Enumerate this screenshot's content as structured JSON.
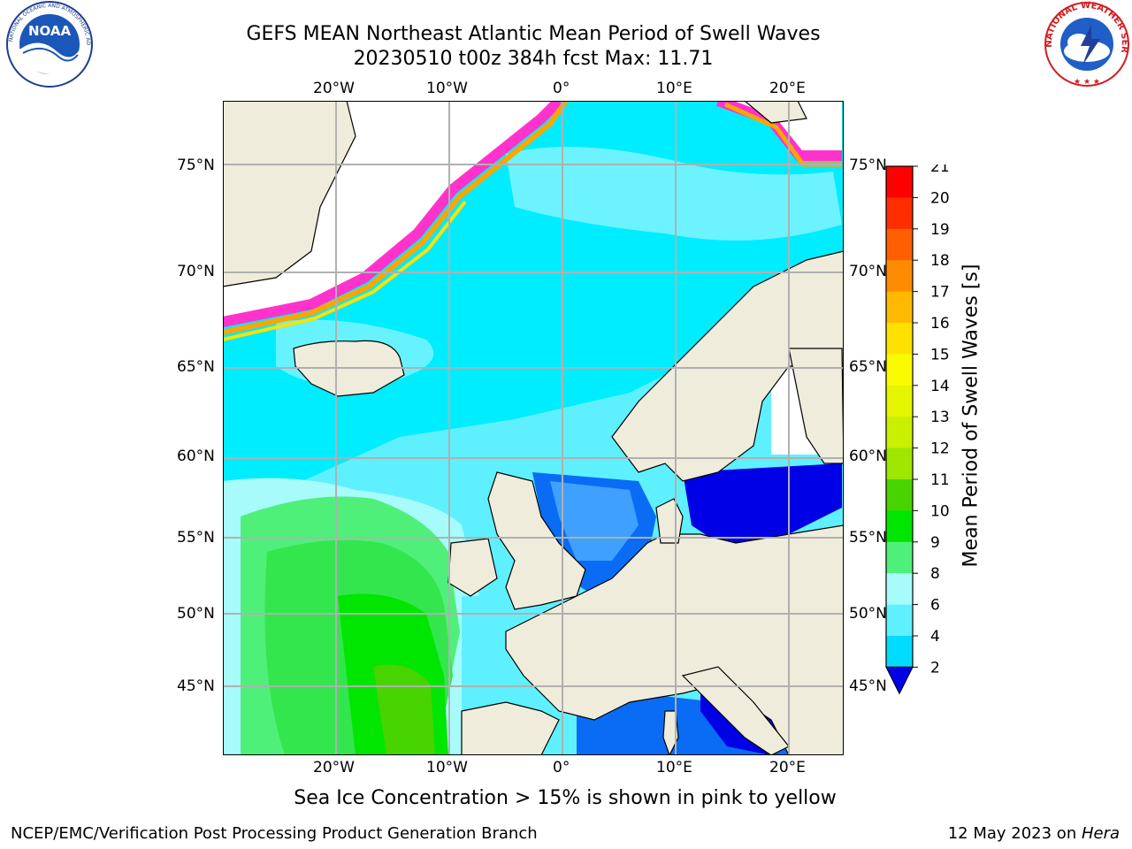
{
  "title": {
    "line1": "GEFS MEAN Northeast Atlantic Mean Period of Swell Waves",
    "line2": "20230510 t00z 384h fcst   Max: 11.71"
  },
  "caption": "Sea Ice Concentration > 15% is shown in pink to yellow",
  "footer": {
    "left": "NCEP/EMC/Verification Post Processing Product Generation Branch",
    "right_date": "12 May 2023 on ",
    "right_host": "Hera"
  },
  "map": {
    "lon_labels": [
      "20°W",
      "10°W",
      "0°",
      "10°E",
      "20°E"
    ],
    "lat_labels": [
      "75°N",
      "70°N",
      "65°N",
      "60°N",
      "55°N",
      "50°N",
      "45°N"
    ],
    "lat_range": [
      41,
      78
    ],
    "lon_range": [
      -30,
      25
    ],
    "land_color": "#efecdc",
    "ice_color": "#ffffff"
  },
  "colorbar": {
    "label": "Mean Period of Swell Waves [s]",
    "ticks": [
      "2",
      "4",
      "6",
      "8",
      "9",
      "10",
      "11",
      "12",
      "13",
      "14",
      "15",
      "16",
      "17",
      "18",
      "19",
      "20",
      "21"
    ],
    "colors": [
      "#0a6cf5",
      "#00dcff",
      "#5ff0ff",
      "#a8fbfb",
      "#4ff07a",
      "#00e600",
      "#47d400",
      "#9fe600",
      "#c8f000",
      "#e6f500",
      "#fafa00",
      "#ffe100",
      "#ffb900",
      "#ff8c00",
      "#ff5f00",
      "#ff2d00",
      "#ff0000"
    ],
    "extend_color": "#0000e6"
  },
  "logos": {
    "noaa_text": "NOAA",
    "noaa_ring": "NATIONAL OCEANIC AND ATMOSPHERIC ADMINISTRATION · U.S. DEPARTMENT OF COMMERCE",
    "nws_ring": "NATIONAL WEATHER SERVICE"
  }
}
